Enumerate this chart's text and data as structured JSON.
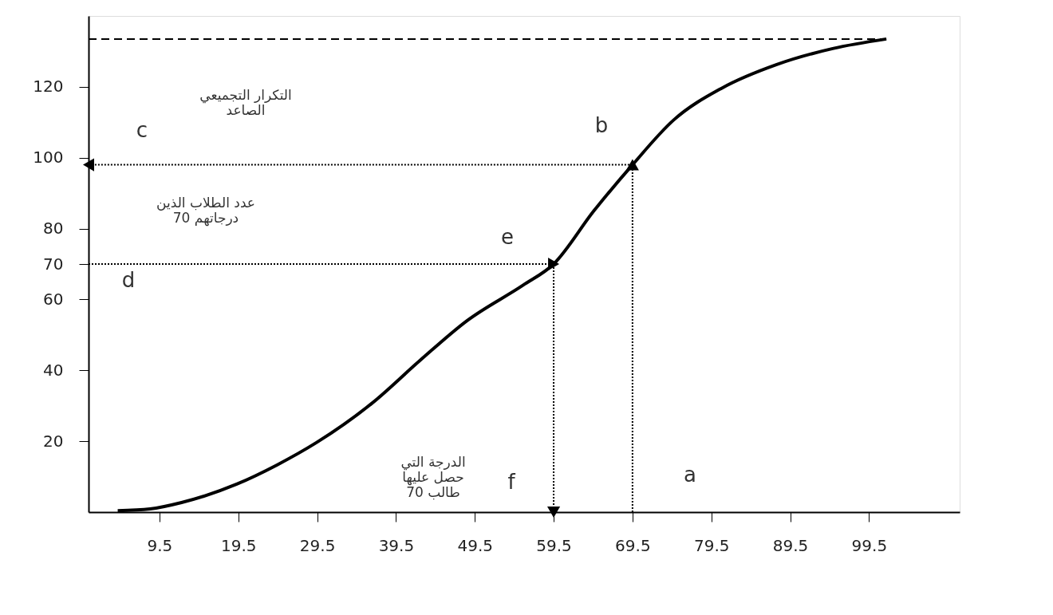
{
  "chart_data": {
    "type": "line",
    "xlim": [
      0.5,
      111
    ],
    "ylim": [
      0,
      140
    ],
    "xticks": [
      9.5,
      19.5,
      29.5,
      39.5,
      49.5,
      59.5,
      69.5,
      79.5,
      89.5,
      99.5
    ],
    "yticks": [
      20,
      40,
      60,
      70,
      80,
      100,
      120
    ],
    "grid": false,
    "series": [
      {
        "color": "#000000",
        "line_style": "solid",
        "x": [
          4.2,
          8.3,
          12.3,
          19.3,
          24.4,
          29.4,
          36.5,
          42.5,
          48.5,
          55.6,
          59.5,
          64.6,
          69.5,
          74.7,
          80.8,
          87.8,
          94.9,
          101.7
        ],
        "values": [
          0.4,
          0.9,
          2.7,
          7.9,
          13.3,
          19.6,
          30.8,
          42.7,
          54,
          64,
          70,
          85,
          98,
          110.6,
          119.6,
          126.3,
          130.8,
          133.5
        ]
      },
      {
        "type": "line",
        "color": "#000000",
        "line_style": "dashed",
        "x": [
          0.5,
          101.7
        ],
        "values": [
          133.5,
          133.5
        ]
      },
      {
        "type": "line",
        "color": "#000000",
        "line_style": "dotted",
        "x": [
          69.5,
          69.5
        ],
        "values": [
          0,
          98
        ]
      },
      {
        "type": "line",
        "color": "#000000",
        "line_style": "dotted",
        "x": [
          69.5,
          0.5
        ],
        "values": [
          98,
          98
        ]
      },
      {
        "type": "line",
        "color": "#000000",
        "line_style": "dotted",
        "x": [
          0.5,
          59.5
        ],
        "values": [
          70,
          70
        ]
      },
      {
        "type": "line",
        "color": "#000000",
        "line_style": "dotted",
        "x": [
          59.5,
          59.5
        ],
        "values": [
          70,
          0
        ]
      }
    ],
    "annotations": [
      "التكرار التجميعي\nالصاعد",
      "c",
      "b",
      "عدد الطلاب الذين\nدرجاتهم 70",
      "e",
      "d",
      "الدرجة التي\nحصل عليها\n70 طالب",
      "f",
      "a"
    ]
  }
}
